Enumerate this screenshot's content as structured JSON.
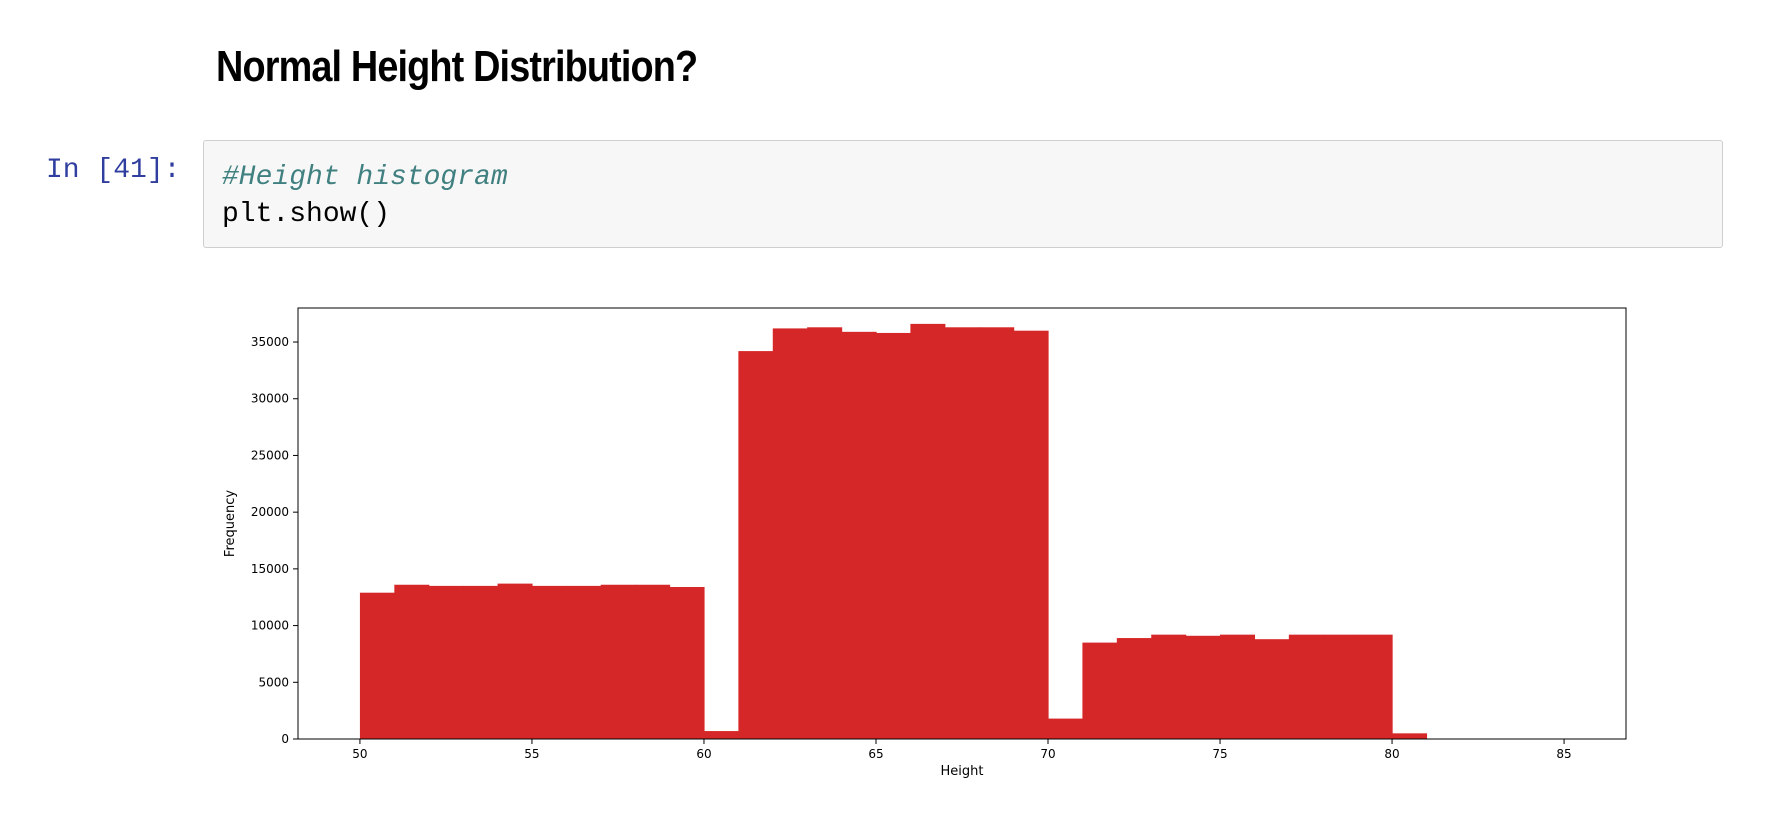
{
  "notebook": {
    "heading": "Normal Height Distribution?",
    "cell": {
      "prompt": "In [41]:",
      "code_comment": "#Height histogram",
      "code_line": "plt.show()"
    }
  },
  "colors": {
    "bar": "#d62728",
    "prompt": "#303f9f",
    "comment": "#408080",
    "cell_bg": "#f7f7f7"
  },
  "chart_data": {
    "type": "bar",
    "title": "",
    "xlabel": "Height",
    "ylabel": "Frequency",
    "xlim": [
      48.2,
      86.8
    ],
    "ylim": [
      0,
      38000
    ],
    "xticks": [
      50,
      55,
      60,
      65,
      70,
      75,
      80,
      85
    ],
    "yticks": [
      0,
      5000,
      10000,
      15000,
      20000,
      25000,
      30000,
      35000
    ],
    "grid": false,
    "bin_edges": [
      50,
      51,
      52,
      53,
      54,
      55,
      56,
      57,
      58,
      59,
      60,
      61,
      62,
      63,
      64,
      65,
      66,
      67,
      68,
      69,
      70,
      71,
      72,
      73,
      74,
      75,
      76,
      77,
      78,
      79,
      80,
      81
    ],
    "values": [
      12900,
      13600,
      13500,
      13500,
      13700,
      13500,
      13500,
      13600,
      13600,
      13400,
      700,
      34200,
      36200,
      36300,
      35900,
      35800,
      36600,
      36300,
      36300,
      36000,
      1800,
      8500,
      8900,
      9200,
      9100,
      9200,
      8800,
      9200,
      9200,
      9200,
      500
    ]
  }
}
